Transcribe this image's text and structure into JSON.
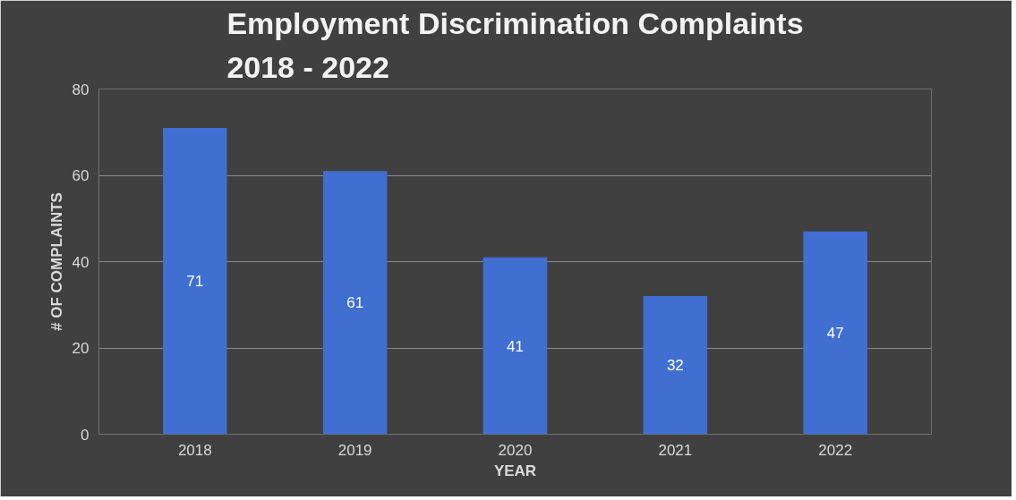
{
  "chart_data": {
    "type": "bar",
    "title": "Employment Discrimination Complaints\n2018 - 2022",
    "xlabel": "YEAR",
    "ylabel": "# OF COMPLAINTS",
    "categories": [
      "2018",
      "2019",
      "2020",
      "2021",
      "2022"
    ],
    "values": [
      71,
      61,
      41,
      32,
      47
    ],
    "color": "#3f6fd1",
    "ylim": [
      0,
      80
    ],
    "yticks": [
      0,
      20,
      40,
      60,
      80
    ],
    "grid": "y",
    "data_labels": true
  }
}
